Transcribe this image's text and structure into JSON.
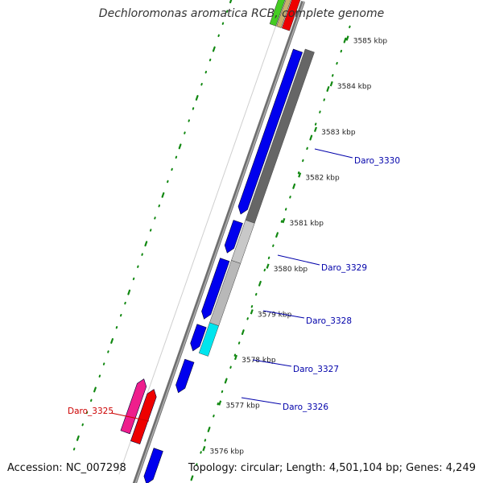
{
  "title": "Dechloromonas aromatica RCB, complete genome",
  "accession": "Accession: NC_007298",
  "summary": "Topology: circular; Length: 4,501,104 bp; Genes: 4,249",
  "colors": {
    "backbone": "#888888",
    "gene_blue": "#0000ee",
    "gc_dark": "#666666",
    "gc_light": "#c8c8c8",
    "cyan": "#00e5ee",
    "red": "#ee0000",
    "magenta": "#ee1e8c",
    "tick": "#118811",
    "label_blue": "#0000aa",
    "label_red": "#cc0000"
  },
  "ticks": [
    "3585 kbp",
    "3584 kbp",
    "3583 kbp",
    "3582 kbp",
    "3581 kbp",
    "3580 kbp",
    "3579 kbp",
    "3578 kbp",
    "3577 kbp",
    "3576 kbp"
  ],
  "gene_labels": [
    {
      "name": "Daro_3330",
      "color": "blue"
    },
    {
      "name": "Daro_3329",
      "color": "blue"
    },
    {
      "name": "Daro_3328",
      "color": "blue"
    },
    {
      "name": "Daro_3327",
      "color": "blue"
    },
    {
      "name": "Daro_3326",
      "color": "blue"
    },
    {
      "name": "Daro_3325",
      "color": "red"
    }
  ]
}
